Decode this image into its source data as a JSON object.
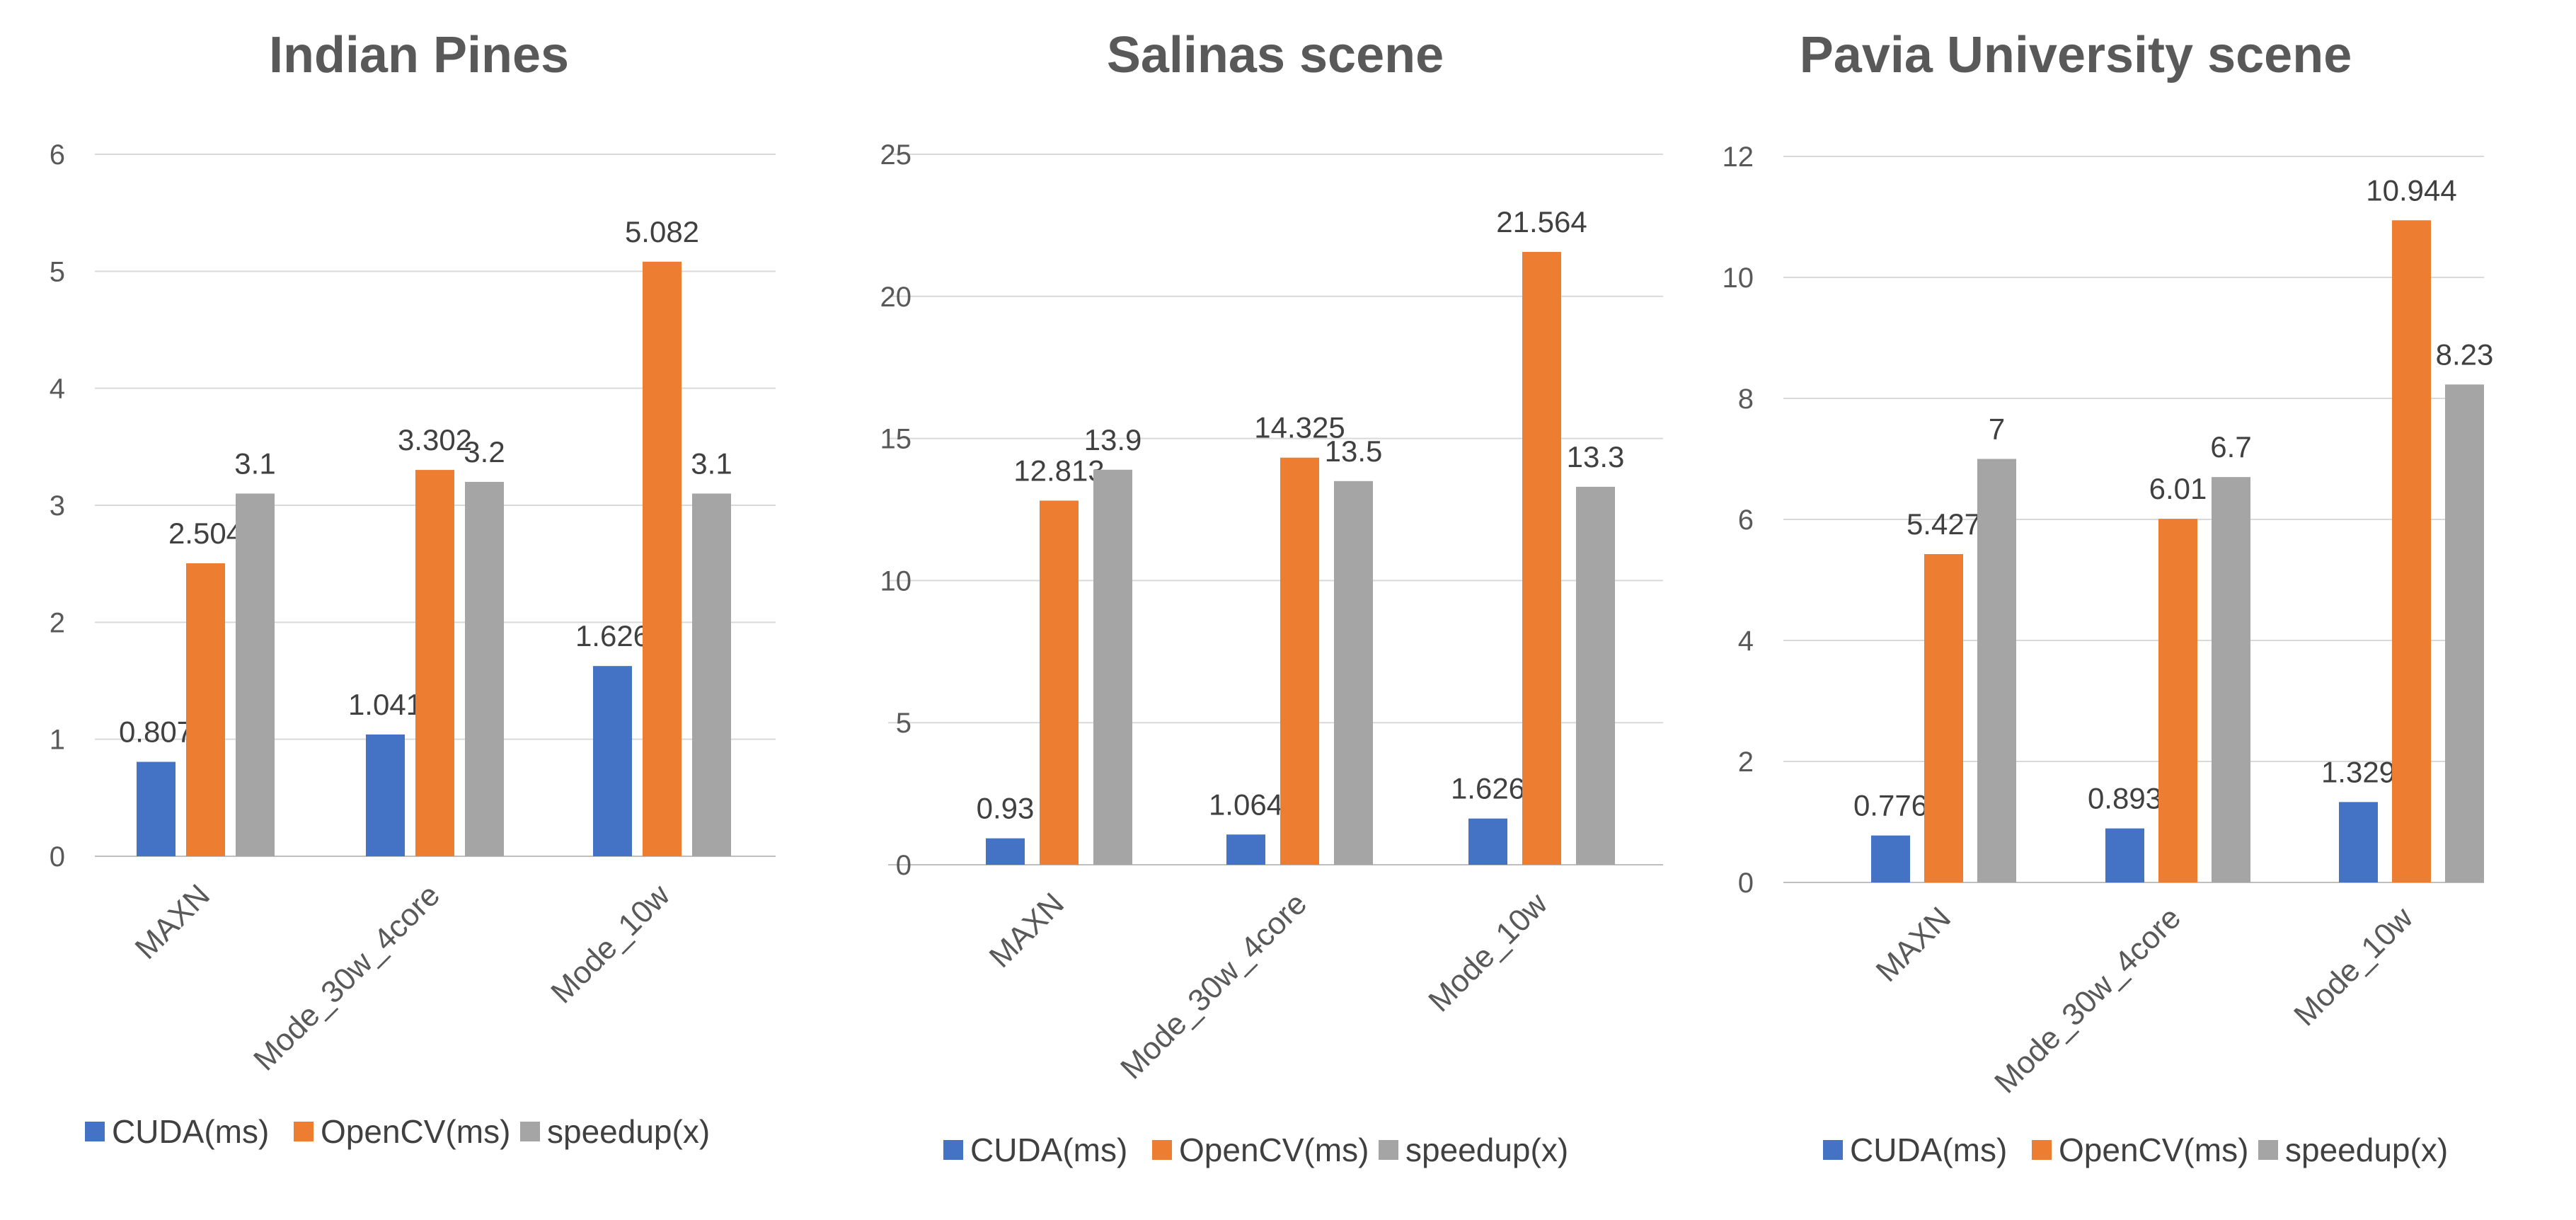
{
  "chart_data": [
    {
      "type": "bar",
      "title": "Indian Pines",
      "categories": [
        "MAXN",
        "Mode_30w_4core",
        "Mode_10w"
      ],
      "series": [
        {
          "name": "CUDA(ms)",
          "color": "#4472C4",
          "values": [
            0.807,
            1.041,
            1.626
          ],
          "labels": [
            "0.807",
            "1.041",
            "1.626"
          ]
        },
        {
          "name": "OpenCV(ms)",
          "color": "#ED7D31",
          "values": [
            2.504,
            3.302,
            5.082
          ],
          "labels": [
            "2.504",
            "3.302",
            "5.082"
          ]
        },
        {
          "name": "speedup(x)",
          "color": "#A5A5A5",
          "values": [
            3.1,
            3.2,
            3.1
          ],
          "labels": [
            "3.1",
            "3.2",
            "3.1"
          ]
        }
      ],
      "ylim": [
        0,
        6
      ],
      "yticks": [
        0,
        1,
        2,
        3,
        4,
        5,
        6
      ],
      "grid": true,
      "legend": "bottom"
    },
    {
      "type": "bar",
      "title": "Salinas scene",
      "categories": [
        "MAXN",
        "Mode_30w_4core",
        "Mode_10w"
      ],
      "series": [
        {
          "name": "CUDA(ms)",
          "color": "#4472C4",
          "values": [
            0.93,
            1.064,
            1.626
          ],
          "labels": [
            "0.93",
            "1.064",
            "1.626"
          ]
        },
        {
          "name": "OpenCV(ms)",
          "color": "#ED7D31",
          "values": [
            12.813,
            14.325,
            21.564
          ],
          "labels": [
            "12.813",
            "14.325",
            "21.564"
          ]
        },
        {
          "name": "speedup(x)",
          "color": "#A5A5A5",
          "values": [
            13.9,
            13.5,
            13.3
          ],
          "labels": [
            "13.9",
            "13.5",
            "13.3"
          ]
        }
      ],
      "ylim": [
        0,
        25
      ],
      "yticks": [
        0,
        5,
        10,
        15,
        20,
        25
      ],
      "grid": true,
      "legend": "bottom"
    },
    {
      "type": "bar",
      "title": "Pavia University scene",
      "categories": [
        "MAXN",
        "Mode_30w_4core",
        "Mode_10w"
      ],
      "series": [
        {
          "name": "CUDA(ms)",
          "color": "#4472C4",
          "values": [
            0.776,
            0.893,
            1.329
          ],
          "labels": [
            "0.776",
            "0.893",
            "1.329"
          ]
        },
        {
          "name": "OpenCV(ms)",
          "color": "#ED7D31",
          "values": [
            5.427,
            6.01,
            10.944
          ],
          "labels": [
            "5.427",
            "6.01",
            "10.944"
          ]
        },
        {
          "name": "speedup(x)",
          "color": "#A5A5A5",
          "values": [
            7,
            6.7,
            8.23
          ],
          "labels": [
            "7",
            "6.7",
            "8.23"
          ]
        }
      ],
      "ylim": [
        0,
        12
      ],
      "yticks": [
        0,
        2,
        4,
        6,
        8,
        10,
        12
      ],
      "grid": true,
      "legend": "bottom"
    }
  ]
}
